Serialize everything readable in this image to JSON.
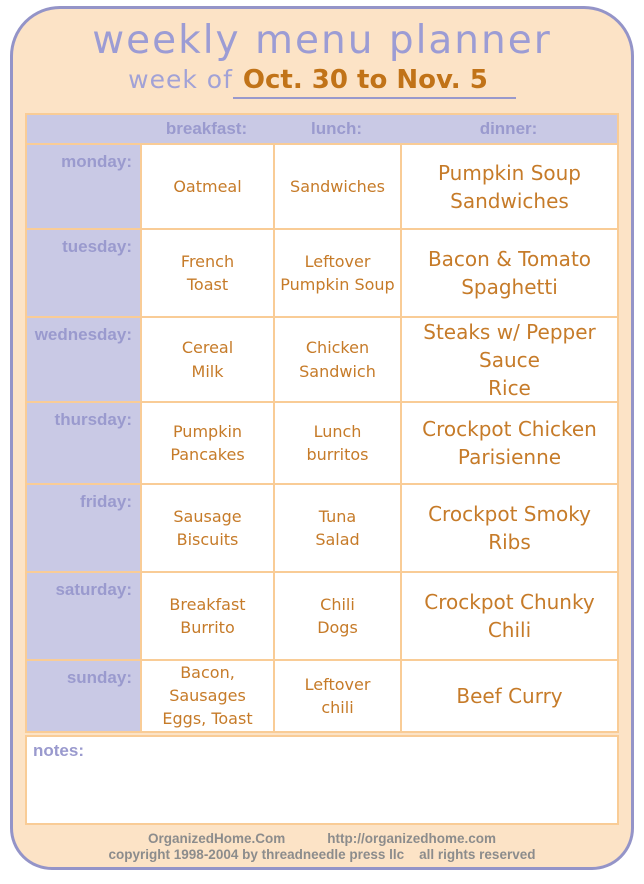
{
  "title": "weekly menu planner",
  "week": {
    "label": "week of",
    "value": "Oct. 30 to Nov. 5"
  },
  "table": {
    "headers": {
      "breakfast": "breakfast:",
      "lunch": "lunch:",
      "dinner": "dinner:"
    },
    "rows": [
      {
        "day": "monday:",
        "breakfast": "Oatmeal",
        "lunch": "Sandwiches",
        "dinner": "Pumpkin Soup\nSandwiches"
      },
      {
        "day": "tuesday:",
        "breakfast": "French\nToast",
        "lunch": "Leftover\nPumpkin Soup",
        "dinner": "Bacon & Tomato\nSpaghetti"
      },
      {
        "day": "wednesday:",
        "breakfast": "Cereal\nMilk",
        "lunch": "Chicken\nSandwich",
        "dinner": "Steaks w/ Pepper\nSauce\nRice"
      },
      {
        "day": "thursday:",
        "breakfast": "Pumpkin\nPancakes",
        "lunch": "Lunch\nburritos",
        "dinner": "Crockpot Chicken\nParisienne"
      },
      {
        "day": "friday:",
        "breakfast": "Sausage\nBiscuits",
        "lunch": "Tuna\nSalad",
        "dinner": "Crockpot Smoky\nRibs"
      },
      {
        "day": "saturday:",
        "breakfast": "Breakfast\nBurrito",
        "lunch": "Chili\nDogs",
        "dinner": "Crockpot Chunky\nChili"
      },
      {
        "day": "sunday:",
        "breakfast": "Bacon,\nSausages\nEggs, Toast",
        "lunch": "Leftover\nchili",
        "dinner": "Beef Curry"
      }
    ]
  },
  "notes": {
    "label": "notes:",
    "value": ""
  },
  "footer": {
    "site_name": "OrganizedHome.Com",
    "site_url": "http://organizedhome.com",
    "copyright": "copyright 1998-2004 by threadneedle press llc    all rights reserved"
  },
  "colors": {
    "page_background": "#FCE3C6",
    "outer_border_purple": "#9494C8",
    "lavender_band": "#C9C9E5",
    "purple_text": "#9A9ACE",
    "menu_text_orange": "#C67B29",
    "date_orange": "#C17318",
    "grid_border_orange": "#F9CC96",
    "footer_gray": "#8C8C8C"
  }
}
